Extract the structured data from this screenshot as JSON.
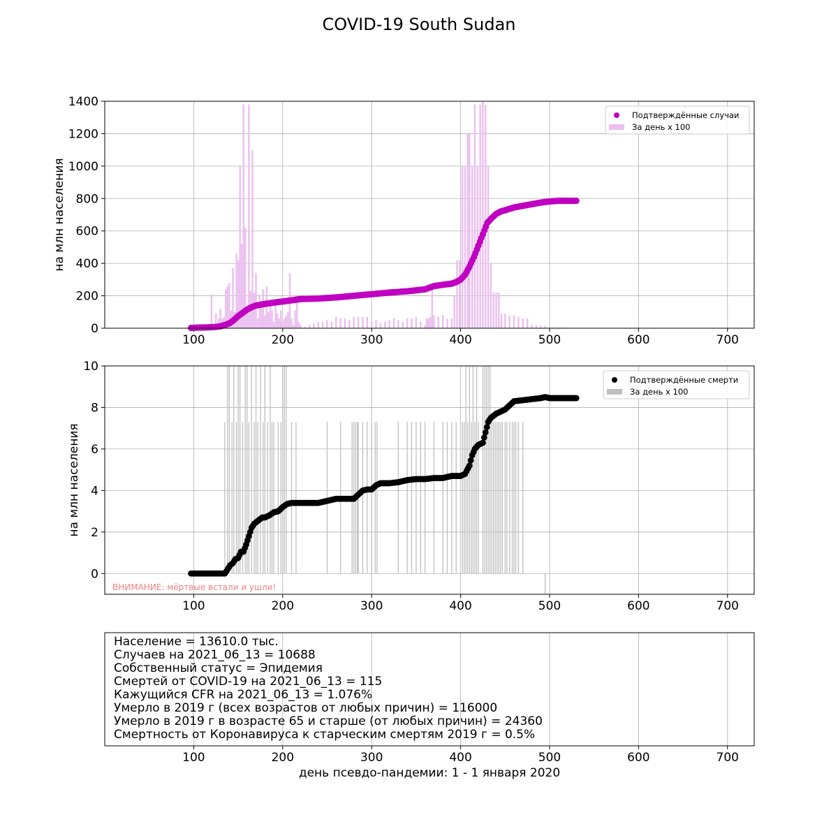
{
  "figure_title": "COVID-19 South Sudan",
  "colors": {
    "cases_marker": "#c000c0",
    "cases_bar": "#ebbff0",
    "deaths_marker": "#000000",
    "deaths_bar": "#bfbfbf",
    "warning_text": "#f08080",
    "grid": "#b0b0b0"
  },
  "chart_data": [
    {
      "type": "scatter",
      "name": "cases",
      "ylabel": "на млн населения",
      "xlim": [
        0,
        730
      ],
      "ylim": [
        0,
        1400
      ],
      "xticks": [
        100,
        200,
        300,
        400,
        500,
        600,
        700
      ],
      "yticks": [
        0,
        200,
        400,
        600,
        800,
        1000,
        1200,
        1400
      ],
      "grid": true,
      "legend_position": "top-right",
      "legend": [
        {
          "label": "Подтверждённые случаи",
          "kind": "marker"
        },
        {
          "label": "За день х 100",
          "kind": "bar"
        }
      ],
      "cumulative": {
        "x": [
          97,
          105,
          115,
          125,
          130,
          135,
          140,
          145,
          150,
          155,
          160,
          165,
          170,
          180,
          190,
          200,
          210,
          220,
          240,
          260,
          280,
          300,
          320,
          340,
          360,
          370,
          380,
          390,
          395,
          400,
          405,
          410,
          415,
          420,
          425,
          430,
          435,
          440,
          445,
          450,
          460,
          470,
          480,
          490,
          500,
          510,
          520,
          530
        ],
        "y": [
          2,
          4,
          5,
          8,
          12,
          20,
          30,
          50,
          75,
          95,
          115,
          130,
          140,
          150,
          158,
          165,
          172,
          180,
          183,
          190,
          200,
          210,
          220,
          228,
          240,
          260,
          268,
          275,
          285,
          300,
          330,
          380,
          440,
          510,
          580,
          650,
          680,
          705,
          720,
          728,
          745,
          755,
          765,
          775,
          782,
          786,
          786,
          786
        ]
      },
      "daily_x100": {
        "x": [
          120,
          125,
          128,
          130,
          132,
          134,
          136,
          138,
          140,
          142,
          144,
          146,
          148,
          150,
          152,
          154,
          156,
          158,
          160,
          162,
          164,
          166,
          168,
          170,
          172,
          174,
          176,
          178,
          180,
          182,
          184,
          186,
          188,
          190,
          192,
          194,
          196,
          198,
          200,
          202,
          204,
          206,
          208,
          210,
          212,
          214,
          216,
          218,
          220,
          225,
          230,
          235,
          240,
          245,
          250,
          255,
          260,
          265,
          270,
          275,
          280,
          285,
          290,
          295,
          300,
          305,
          310,
          315,
          320,
          325,
          330,
          335,
          340,
          345,
          350,
          355,
          360,
          362,
          364,
          366,
          368,
          370,
          375,
          380,
          385,
          390,
          393,
          396,
          399,
          402,
          405,
          408,
          410,
          413,
          416,
          419,
          422,
          425,
          428,
          431,
          434,
          437,
          440,
          443,
          446,
          450,
          455,
          460,
          465,
          470,
          475,
          480,
          485,
          490,
          495,
          500,
          505,
          510,
          515
        ],
        "y": [
          210,
          90,
          60,
          120,
          60,
          70,
          240,
          260,
          280,
          110,
          370,
          100,
          460,
          420,
          1000,
          520,
          1380,
          620,
          130,
          1380,
          230,
          1100,
          220,
          340,
          60,
          200,
          120,
          240,
          80,
          260,
          100,
          140,
          110,
          40,
          150,
          90,
          60,
          110,
          40,
          60,
          80,
          100,
          340,
          60,
          20,
          110,
          180,
          40,
          20,
          10,
          20,
          30,
          40,
          40,
          50,
          40,
          70,
          60,
          60,
          50,
          70,
          70,
          70,
          70,
          40,
          50,
          30,
          40,
          50,
          60,
          50,
          40,
          60,
          60,
          70,
          40,
          20,
          60,
          60,
          70,
          240,
          80,
          70,
          80,
          60,
          60,
          200,
          420,
          420,
          1000,
          1000,
          1200,
          1200,
          1000,
          1380,
          1000,
          1380,
          1400,
          1380,
          1000,
          400,
          220,
          220,
          220,
          90,
          90,
          80,
          80,
          70,
          60,
          60,
          20,
          20,
          15,
          15,
          10,
          5,
          5,
          5
        ]
      }
    },
    {
      "type": "scatter",
      "name": "deaths",
      "ylabel": "на млн населения",
      "xlim": [
        0,
        730
      ],
      "ylim": [
        -1,
        10
      ],
      "xticks": [
        100,
        200,
        300,
        400,
        500,
        600,
        700
      ],
      "yticks": [
        0,
        2,
        4,
        6,
        8,
        10
      ],
      "grid": true,
      "legend_position": "top-right",
      "legend": [
        {
          "label": "Подтверждённые смерти",
          "kind": "marker"
        },
        {
          "label": "За день х 100",
          "kind": "bar"
        }
      ],
      "annotation": "ВНИМАНИЕ: мёртвые встали и ушли!",
      "cumulative": {
        "x": [
          97,
          110,
          120,
          130,
          135,
          138,
          141,
          144,
          147,
          150,
          153,
          156,
          159,
          162,
          165,
          168,
          171,
          174,
          177,
          180,
          185,
          190,
          195,
          200,
          205,
          210,
          215,
          220,
          240,
          250,
          260,
          270,
          280,
          285,
          290,
          295,
          300,
          305,
          310,
          320,
          330,
          340,
          350,
          360,
          370,
          380,
          390,
          400,
          405,
          410,
          413,
          416,
          420,
          425,
          428,
          431,
          434,
          437,
          440,
          445,
          450,
          455,
          460,
          470,
          480,
          490,
          495,
          500,
          510,
          520,
          530
        ],
        "y": [
          0,
          0,
          0,
          0,
          0,
          0.2,
          0.4,
          0.5,
          0.7,
          0.75,
          1.05,
          1.05,
          1.4,
          1.8,
          2.2,
          2.4,
          2.5,
          2.6,
          2.7,
          2.7,
          2.8,
          2.95,
          3.0,
          3.2,
          3.35,
          3.4,
          3.4,
          3.4,
          3.4,
          3.5,
          3.6,
          3.6,
          3.6,
          3.8,
          4.0,
          4.05,
          4.05,
          4.25,
          4.35,
          4.35,
          4.4,
          4.5,
          4.55,
          4.55,
          4.6,
          4.6,
          4.7,
          4.7,
          4.8,
          5.2,
          5.7,
          6.0,
          6.2,
          6.3,
          6.8,
          7.3,
          7.5,
          7.6,
          7.7,
          7.8,
          7.9,
          8.1,
          8.3,
          8.35,
          8.4,
          8.45,
          8.5,
          8.45,
          8.45,
          8.45,
          8.45
        ]
      },
      "daily_x100": {
        "x": [
          135,
          138,
          140,
          143,
          145,
          148,
          150,
          152,
          155,
          158,
          160,
          162,
          165,
          168,
          170,
          172,
          175,
          178,
          180,
          183,
          186,
          188,
          190,
          195,
          198,
          200,
          202,
          204,
          210,
          215,
          250,
          265,
          278,
          280,
          282,
          284,
          285,
          290,
          295,
          300,
          304,
          306,
          330,
          340,
          345,
          350,
          355,
          360,
          370,
          380,
          385,
          390,
          395,
          402,
          404,
          406,
          408,
          410,
          412,
          414,
          416,
          418,
          420,
          425,
          427,
          429,
          431,
          433,
          435,
          437,
          439,
          441,
          443,
          445,
          447,
          450,
          452,
          455,
          458,
          460,
          462,
          465,
          470,
          495
        ],
        "y": [
          7.3,
          10,
          10,
          7.3,
          10,
          7.3,
          10,
          10,
          7.3,
          10,
          10,
          7.3,
          10,
          7.3,
          10,
          7.3,
          10,
          7.3,
          10,
          7.3,
          10,
          7.3,
          7.3,
          7.3,
          7.3,
          10,
          10,
          10,
          7.3,
          7.3,
          7.3,
          7.3,
          7.3,
          7.3,
          7.3,
          7.3,
          7.3,
          7.3,
          7.3,
          7.3,
          7.3,
          7.3,
          7.3,
          7.3,
          7.3,
          7.3,
          7.3,
          7.3,
          7.3,
          7.3,
          7.3,
          7.3,
          7.3,
          7.3,
          7.3,
          10,
          7.3,
          10,
          7.3,
          10,
          7.3,
          10,
          7.3,
          10,
          10,
          10,
          10,
          10,
          7.3,
          7.3,
          7.3,
          7.3,
          7.3,
          7.3,
          7.3,
          7.3,
          7.3,
          7.3,
          7.3,
          7.3,
          7.3,
          7.3,
          7.3,
          -1
        ]
      }
    },
    {
      "type": "table",
      "name": "info",
      "xlabel": "день псевдо-пандемии: 1 - 1 января 2020",
      "xlim": [
        0,
        730
      ],
      "xticks": [
        100,
        200,
        300,
        400,
        500,
        600,
        700
      ],
      "grid": true,
      "lines": [
        "Население = 13610.0 тыс.",
        "Случаев на 2021_06_13 = 10688",
        "Собственный статус = Эпидемия",
        "Смертей от COVID-19 на 2021_06_13 = 115",
        "Кажущийся CFR на 2021_06_13 = 1.076%",
        "Умерло в 2019 г (всех возрастов от любых причин) = 116000",
        "Умерло в 2019 г в возрасте 65 и старше (от любых причин) = 24360",
        "Смертность от Коронавируса к старческим смертям 2019 г = 0.5%"
      ]
    }
  ]
}
